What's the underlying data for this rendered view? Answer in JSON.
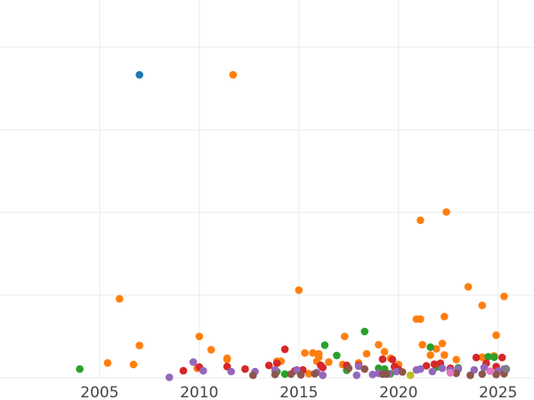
{
  "chart_data": {
    "type": "scatter",
    "title": "",
    "xlabel": "",
    "ylabel": "",
    "grid": true,
    "legend": "none",
    "xlim": [
      2000,
      2026.8
    ],
    "ylim": [
      0,
      100
    ],
    "x_ticks": [
      2005,
      2010,
      2015,
      2020,
      2025
    ],
    "y_ticks": [
      0,
      20,
      40,
      60,
      80,
      100
    ],
    "colors": {
      "blue": "#1f77b4",
      "orange": "#ff7f0e",
      "green": "#2ca02c",
      "red": "#d62728",
      "purple": "#9467bd",
      "brown": "#8c564b",
      "pink": "#e377c2",
      "olive": "#bcbd22",
      "gray": "#7f7f7f"
    },
    "series": [
      {
        "color_key": "blue",
        "points": [
          [
            2007.0,
            73.3
          ]
        ]
      },
      {
        "color_key": "orange",
        "points": [
          [
            2011.7,
            73.3
          ],
          [
            2021.1,
            38.1
          ],
          [
            2022.4,
            40.1
          ],
          [
            2015.0,
            21.2
          ],
          [
            2006.0,
            19.1
          ],
          [
            2023.5,
            22.0
          ],
          [
            2025.3,
            19.7
          ],
          [
            2024.2,
            17.5
          ],
          [
            2022.3,
            14.8
          ],
          [
            2020.9,
            14.2
          ],
          [
            2021.1,
            14.2
          ],
          [
            2007.0,
            7.8
          ],
          [
            2010.0,
            10.0
          ],
          [
            2005.4,
            3.6
          ],
          [
            2006.7,
            3.2
          ],
          [
            2010.6,
            6.8
          ],
          [
            2011.4,
            4.7
          ],
          [
            2011.4,
            4.4
          ],
          [
            2009.9,
            2.3
          ],
          [
            2013.9,
            4.0
          ],
          [
            2014.1,
            4.0
          ],
          [
            2015.3,
            6.0
          ],
          [
            2015.7,
            6.0
          ],
          [
            2016.0,
            5.8
          ],
          [
            2016.0,
            5.0
          ],
          [
            2015.9,
            4.0
          ],
          [
            2016.5,
            3.8
          ],
          [
            2017.3,
            10.0
          ],
          [
            2017.2,
            3.2
          ],
          [
            2018.0,
            3.6
          ],
          [
            2018.4,
            5.8
          ],
          [
            2019.0,
            8.0
          ],
          [
            2019.3,
            6.3
          ],
          [
            2019.6,
            4.7
          ],
          [
            2019.8,
            2.6
          ],
          [
            2020.0,
            3.2
          ],
          [
            2021.2,
            8.0
          ],
          [
            2021.6,
            5.5
          ],
          [
            2022.2,
            8.3
          ],
          [
            2022.3,
            5.5
          ],
          [
            2022.9,
            4.4
          ],
          [
            2024.8,
            5.3
          ],
          [
            2024.9,
            10.3
          ],
          [
            2021.9,
            7.0
          ],
          [
            2024.2,
            5.0
          ],
          [
            2022.6,
            1.7
          ],
          [
            2015.5,
            1.0
          ]
        ]
      },
      {
        "color_key": "green",
        "points": [
          [
            2004.0,
            2.1
          ],
          [
            2014.3,
            0.9
          ],
          [
            2016.3,
            7.9
          ],
          [
            2016.9,
            5.4
          ],
          [
            2018.3,
            11.2
          ],
          [
            2019.0,
            2.3
          ],
          [
            2019.3,
            2.1
          ],
          [
            2021.6,
            7.4
          ],
          [
            2023.0,
            2.4
          ],
          [
            2017.4,
            1.8
          ],
          [
            2024.5,
            5.1
          ],
          [
            2024.8,
            5.0
          ],
          [
            2021.9,
            2.6
          ],
          [
            2013.9,
            1.5
          ],
          [
            2019.6,
            1.0
          ]
        ]
      },
      {
        "color_key": "red",
        "points": [
          [
            2009.2,
            1.7
          ],
          [
            2010.0,
            2.6
          ],
          [
            2011.4,
            2.7
          ],
          [
            2012.3,
            2.1
          ],
          [
            2013.5,
            3.0
          ],
          [
            2013.9,
            3.5
          ],
          [
            2014.3,
            6.9
          ],
          [
            2014.8,
            1.7
          ],
          [
            2015.2,
            1.9
          ],
          [
            2016.1,
            3.0
          ],
          [
            2016.2,
            2.5
          ],
          [
            2017.4,
            3.0
          ],
          [
            2018.0,
            3.0
          ],
          [
            2019.2,
            4.5
          ],
          [
            2019.7,
            4.4
          ],
          [
            2019.8,
            2.7
          ],
          [
            2020.0,
            2.0
          ],
          [
            2021.4,
            2.9
          ],
          [
            2021.8,
            3.3
          ],
          [
            2022.1,
            3.5
          ],
          [
            2023.9,
            4.9
          ],
          [
            2024.4,
            3.5
          ],
          [
            2024.9,
            2.7
          ],
          [
            2025.2,
            4.9
          ],
          [
            2022.6,
            2.3
          ]
        ]
      },
      {
        "color_key": "purple",
        "points": [
          [
            2008.5,
            0.1
          ],
          [
            2009.7,
            3.8
          ],
          [
            2010.2,
            1.7
          ],
          [
            2011.6,
            1.5
          ],
          [
            2012.8,
            1.5
          ],
          [
            2013.8,
            1.9
          ],
          [
            2014.9,
            1.9
          ],
          [
            2015.9,
            1.3
          ],
          [
            2016.2,
            0.6
          ],
          [
            2017.9,
            0.6
          ],
          [
            2018.0,
            2.8
          ],
          [
            2018.7,
            0.8
          ],
          [
            2019.0,
            1.1
          ],
          [
            2019.5,
            1.0
          ],
          [
            2019.9,
            1.5
          ],
          [
            2020.9,
            1.9
          ],
          [
            2021.1,
            2.1
          ],
          [
            2021.7,
            1.5
          ],
          [
            2022.6,
            1.8
          ],
          [
            2023.0,
            2.1
          ],
          [
            2023.8,
            1.9
          ],
          [
            2024.3,
            2.5
          ],
          [
            2025.0,
            1.6
          ],
          [
            2025.3,
            2.1
          ],
          [
            2025.4,
            2.0
          ],
          [
            2022.2,
            2.3
          ]
        ]
      },
      {
        "color_key": "brown",
        "points": [
          [
            2012.7,
            0.6
          ],
          [
            2013.8,
            0.8
          ],
          [
            2014.6,
            0.9
          ],
          [
            2015.1,
            0.7
          ],
          [
            2015.8,
            1.0
          ],
          [
            2017.5,
            2.3
          ],
          [
            2018.3,
            2.1
          ],
          [
            2019.2,
            0.9
          ],
          [
            2019.4,
            0.9
          ],
          [
            2020.2,
            1.4
          ],
          [
            2022.9,
            1.1
          ],
          [
            2023.6,
            0.6
          ],
          [
            2024.2,
            0.9
          ],
          [
            2024.9,
            0.8
          ],
          [
            2025.3,
            1.0
          ]
        ]
      },
      {
        "color_key": "pink",
        "points": [
          [
            2022.6,
            1.2
          ],
          [
            2024.6,
            1.6
          ]
        ]
      },
      {
        "color_key": "olive",
        "points": [
          [
            2020.6,
            0.6
          ]
        ]
      },
      {
        "color_key": "gray",
        "points": [
          [
            2025.4,
            2.2
          ]
        ]
      }
    ]
  }
}
